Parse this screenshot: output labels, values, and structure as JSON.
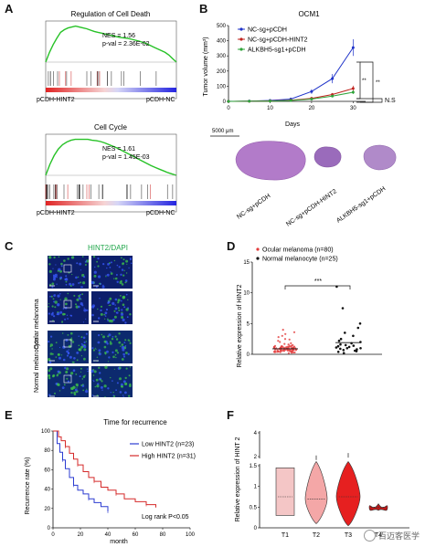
{
  "labels": {
    "A": "A",
    "B": "B",
    "C": "C",
    "D": "D",
    "E": "E",
    "F": "F"
  },
  "panel_a": {
    "plots": [
      {
        "title": "Regulation of Cell Death",
        "stats": [
          "NES = 1.56",
          "p-val = 2.36E-02"
        ],
        "left_label": "pCDH-HINT2",
        "right_label": "pCDH-NC",
        "es": [
          0,
          0.22,
          0.4,
          0.55,
          0.68,
          0.74,
          0.78,
          0.8,
          0.82,
          0.8,
          0.78,
          0.76,
          0.73,
          0.7,
          0.68,
          0.66,
          0.64,
          0.62,
          0.6,
          0.58,
          0.56,
          0.55,
          0.54,
          0.52,
          0.5,
          0.48,
          0.45,
          0.42,
          0.38,
          0.34,
          0.3,
          0.26,
          0.22,
          0.16,
          0.08,
          0
        ]
      },
      {
        "title": "Cell Cycle",
        "stats": [
          "NES = 1.61",
          "p-val = 1.45E-03"
        ],
        "left_label": "pCDH-HINT2",
        "right_label": "pCDH-NC",
        "es": [
          0,
          0.25,
          0.45,
          0.6,
          0.7,
          0.76,
          0.8,
          0.82,
          0.82,
          0.82,
          0.82,
          0.8,
          0.79,
          0.77,
          0.74,
          0.7,
          0.66,
          0.62,
          0.57,
          0.52,
          0.47,
          0.42,
          0.37,
          0.32,
          0.27,
          0.22,
          0.18,
          0.14,
          0.1,
          0.06,
          0.03,
          0
        ]
      }
    ]
  },
  "panel_b": {
    "title": "OCM1",
    "chart_data": {
      "type": "line",
      "x": [
        0,
        5,
        10,
        15,
        20,
        25,
        30
      ],
      "xlabel": "Days",
      "ylabel": "Tumor volume (mm³)",
      "xlim": [
        0,
        33
      ],
      "ylim": [
        0,
        500
      ],
      "xticks": [
        "0",
        "10",
        "20",
        "30"
      ],
      "yticks": [
        "0",
        "100",
        "200",
        "300",
        "400",
        "500"
      ],
      "series": [
        {
          "name": "NC-sg+pCDH",
          "color": "#1f33c9",
          "values": [
            0,
            2,
            6,
            15,
            65,
            150,
            355
          ],
          "err": [
            0,
            2,
            3,
            6,
            15,
            30,
            55
          ]
        },
        {
          "name": "NC-sg+pCDH-HINT2",
          "color": "#c0231e",
          "values": [
            0,
            1,
            3,
            8,
            20,
            45,
            85
          ],
          "err": [
            0,
            1,
            2,
            3,
            6,
            10,
            18
          ]
        },
        {
          "name": "ALKBH5-sg1+pCDH",
          "color": "#2fa43a",
          "values": [
            0,
            1,
            2,
            6,
            15,
            35,
            60
          ],
          "err": [
            0,
            1,
            1,
            2,
            5,
            8,
            12
          ]
        }
      ],
      "significance": [
        "**",
        "**",
        "N.S"
      ]
    },
    "scale_bar": "5000 μm",
    "tumor_labels": [
      "NC-sg+pCDH",
      "NC-sg+pCDH-HINT2",
      "ALKBH5-sg1+pCDH"
    ]
  },
  "panel_c": {
    "header": "HINT2/DAPI",
    "groups": [
      "Ocular melanoma",
      "Normal melanocyte"
    ]
  },
  "panel_d": {
    "chart_data": {
      "type": "scatter",
      "ylabel": "Relative expression of HINT2",
      "ylim": [
        0,
        15
      ],
      "yticks": [
        "0",
        "5",
        "10",
        "15"
      ],
      "legend": [
        "Ocular melanoma (n=80)",
        "Normal melanocyte (n=25)"
      ],
      "mean": [
        0.9,
        1.9
      ],
      "significance": "***",
      "series": [
        {
          "name": "Ocular melanoma (n=80)",
          "color": "#e23b3b",
          "values": [
            0.2,
            0.3,
            0.35,
            0.4,
            0.45,
            0.5,
            0.5,
            0.55,
            0.6,
            0.6,
            0.65,
            0.7,
            0.7,
            0.75,
            0.8,
            0.8,
            0.85,
            0.9,
            0.9,
            0.95,
            1.0,
            1.0,
            1.05,
            1.1,
            1.1,
            1.15,
            1.2,
            1.2,
            1.25,
            1.3,
            0.3,
            0.4,
            0.5,
            0.6,
            0.7,
            0.8,
            0.9,
            1.0,
            1.1,
            1.2,
            0.25,
            0.45,
            0.65,
            0.85,
            1.05,
            1.25,
            1.4,
            1.5,
            1.6,
            1.7,
            1.8,
            2.0,
            2.2,
            2.5,
            2.8,
            3.0,
            3.3,
            3.6,
            4.0,
            0.4,
            0.6,
            0.8,
            1.0,
            1.2,
            0.5,
            0.7,
            0.9,
            1.1,
            1.3,
            0.35,
            0.55,
            0.75,
            0.95,
            1.15,
            1.35,
            0.6,
            0.8,
            1.0,
            1.4,
            2.4
          ]
        },
        {
          "name": "Normal melanocyte (n=25)",
          "color": "#111111",
          "values": [
            0.2,
            0.4,
            0.5,
            0.6,
            0.7,
            0.8,
            0.9,
            1.0,
            1.0,
            1.1,
            1.2,
            1.3,
            1.4,
            1.5,
            1.6,
            1.8,
            2.0,
            2.2,
            2.5,
            3.0,
            3.5,
            4.3,
            5.0,
            7.5,
            11.0
          ]
        }
      ]
    }
  },
  "panel_e": {
    "chart_data": {
      "type": "line",
      "title": "Time for recurrence",
      "xlabel": "month",
      "ylabel": "Recurrence rate (%)",
      "xlim": [
        0,
        100
      ],
      "ylim": [
        0,
        100
      ],
      "xticks": [
        "0",
        "20",
        "40",
        "60",
        "80",
        "100"
      ],
      "yticks": [
        "0",
        "20",
        "40",
        "60",
        "80",
        "100"
      ],
      "series": [
        {
          "name": "Low HINT2 (n=23)",
          "color": "#2b3bd1",
          "x": [
            0,
            3,
            5,
            7,
            9,
            12,
            15,
            18,
            22,
            26,
            30,
            35,
            40
          ],
          "y": [
            100,
            87,
            78,
            70,
            61,
            52,
            44,
            39,
            35,
            30,
            26,
            22,
            17
          ]
        },
        {
          "name": "High HINT2 (n=31)",
          "color": "#d52a2a",
          "x": [
            0,
            4,
            6,
            9,
            12,
            15,
            18,
            22,
            26,
            30,
            35,
            40,
            46,
            52,
            60,
            68,
            75
          ],
          "y": [
            100,
            94,
            90,
            84,
            77,
            71,
            65,
            58,
            52,
            48,
            42,
            39,
            35,
            30,
            27,
            24,
            21
          ]
        }
      ],
      "annotation": "Log rank P<0.05"
    }
  },
  "panel_f": {
    "chart_data": {
      "type": "violin",
      "ylabel": "Relative expression of HINT 2",
      "categories": [
        "T1",
        "T2",
        "T3",
        "T4"
      ],
      "yticks_low": [
        "0",
        "0.5",
        "1",
        "1.5"
      ],
      "yticks_high": [
        "2",
        "4"
      ],
      "colors": [
        "#f4c6c6",
        "#f4a7a7",
        "#e62020",
        "#c01818"
      ],
      "medians": [
        0.75,
        0.7,
        0.75,
        0.5
      ],
      "ranges": [
        [
          0.3,
          1.45
        ],
        [
          0.1,
          2.1
        ],
        [
          0.05,
          2.3
        ],
        [
          0.42,
          0.58
        ]
      ]
    }
  },
  "watermark": "百迈客医学"
}
